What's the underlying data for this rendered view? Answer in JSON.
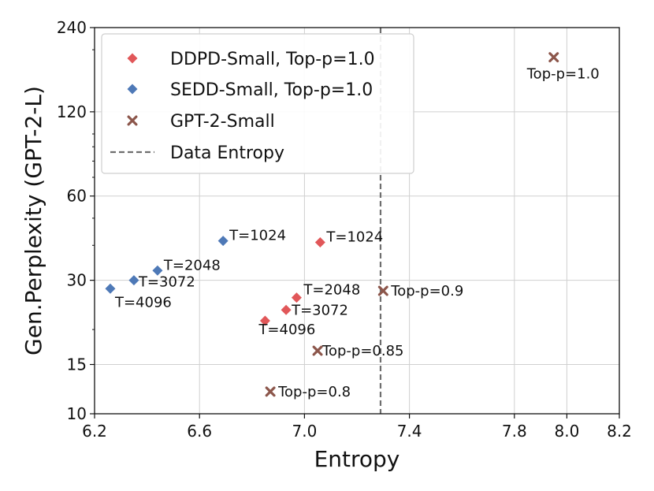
{
  "chart_data": {
    "type": "scatter",
    "title": "",
    "xlabel": "Entropy",
    "ylabel": "Gen.Perplexity (GPT-2-L)",
    "xlim": [
      6.2,
      8.2
    ],
    "ylim": [
      10,
      240
    ],
    "yscale": "log",
    "grid": true,
    "x_ticks": [
      6.2,
      6.6,
      7.0,
      7.4,
      7.8,
      8.0,
      8.2
    ],
    "x_tick_labels": [
      "6.2",
      "6.6",
      "7.0",
      "7.4",
      "7.8",
      "8.0",
      "8.2"
    ],
    "y_ticks": [
      10,
      15,
      30,
      60,
      120,
      240
    ],
    "y_tick_labels": [
      "10",
      "15",
      "30",
      "60",
      "120",
      "240"
    ],
    "series": [
      {
        "name": "DDPD-Small, Top-p=1.0",
        "marker": "diamond",
        "color": "#e15759",
        "points": [
          {
            "x": 7.06,
            "y": 41,
            "label": "T=1024"
          },
          {
            "x": 6.97,
            "y": 26,
            "label": "T=2048"
          },
          {
            "x": 6.93,
            "y": 23.5,
            "label": "T=3072"
          },
          {
            "x": 6.85,
            "y": 21.5,
            "label": "T=4096"
          }
        ]
      },
      {
        "name": "SEDD-Small, Top-p=1.0",
        "marker": "diamond",
        "color": "#4e79b7",
        "points": [
          {
            "x": 6.69,
            "y": 41.5,
            "label": "T=1024"
          },
          {
            "x": 6.44,
            "y": 32.5,
            "label": "T=2048"
          },
          {
            "x": 6.35,
            "y": 30,
            "label": "T=3072"
          },
          {
            "x": 6.26,
            "y": 28,
            "label": "T=4096"
          }
        ]
      },
      {
        "name": "GPT-2-Small",
        "marker": "x",
        "color": "#8c564b",
        "points": [
          {
            "x": 7.95,
            "y": 188,
            "label": "Top-p=1.0"
          },
          {
            "x": 7.3,
            "y": 27.5,
            "label": "Top-p=0.9"
          },
          {
            "x": 7.05,
            "y": 16.8,
            "label": "Top-p=0.85"
          },
          {
            "x": 6.87,
            "y": 12,
            "label": "Top-p=0.8"
          }
        ]
      }
    ],
    "reference_lines": [
      {
        "name": "Data Entropy",
        "orientation": "vertical",
        "x": 7.29,
        "style": "dashed",
        "color": "#6e6e6e"
      }
    ],
    "legend": {
      "position": "top-left",
      "entries": [
        "DDPD-Small, Top-p=1.0",
        "SEDD-Small, Top-p=1.0",
        "GPT-2-Small",
        "Data Entropy"
      ]
    }
  }
}
